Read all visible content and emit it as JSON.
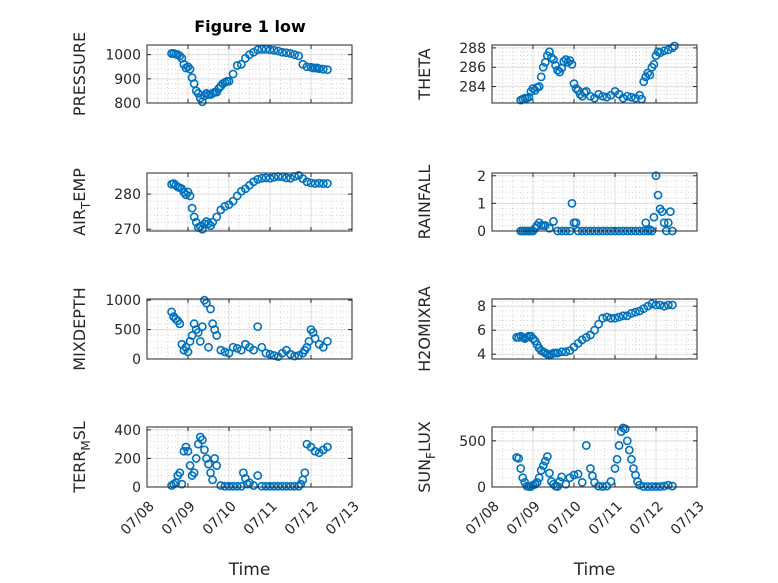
{
  "figure": {
    "title": "Figure 1 low",
    "marker_color": "#0072bd",
    "background": "#ffffff"
  },
  "chart_data": [
    {
      "type": "scatter",
      "title": "Figure 1 low",
      "xlabel": "",
      "ylabel": "PRESSURE",
      "xlim": [
        "07/08",
        "07/13"
      ],
      "ylim": [
        800,
        1040
      ],
      "yticks": [
        800,
        900,
        1000
      ],
      "xtick_labels": [],
      "grid": true,
      "x": [
        0.6,
        0.65,
        0.7,
        0.75,
        0.8,
        0.85,
        0.9,
        0.95,
        1.0,
        1.05,
        1.1,
        1.15,
        1.2,
        1.25,
        1.3,
        1.35,
        1.4,
        1.45,
        1.5,
        1.55,
        1.6,
        1.65,
        1.7,
        1.75,
        1.8,
        1.85,
        1.9,
        1.95,
        2.0,
        2.1,
        2.2,
        2.3,
        2.4,
        2.5,
        2.6,
        2.7,
        2.8,
        2.9,
        3.0,
        3.1,
        3.2,
        3.3,
        3.4,
        3.5,
        3.6,
        3.7,
        3.8,
        3.9,
        4.0,
        4.05,
        4.1,
        4.15,
        4.2,
        4.3,
        4.4
      ],
      "y": [
        1005,
        1005,
        1002,
        1000,
        995,
        985,
        960,
        945,
        950,
        940,
        905,
        880,
        850,
        840,
        820,
        805,
        830,
        840,
        835,
        835,
        840,
        845,
        845,
        860,
        870,
        880,
        885,
        890,
        890,
        920,
        955,
        960,
        985,
        1000,
        1010,
        1020,
        1022,
        1022,
        1020,
        1018,
        1015,
        1010,
        1008,
        1005,
        1000,
        995,
        960,
        950,
        948,
        945,
        945,
        945,
        942,
        940,
        938
      ]
    },
    {
      "type": "scatter",
      "xlabel": "",
      "ylabel": "THETA",
      "xlim": [
        "07/08",
        "07/13"
      ],
      "ylim": [
        282.3,
        288.3
      ],
      "yticks": [
        284,
        286,
        288
      ],
      "xtick_labels": [],
      "grid": true,
      "x": [
        0.7,
        0.75,
        0.8,
        0.85,
        0.9,
        0.95,
        1.0,
        1.05,
        1.1,
        1.15,
        1.2,
        1.25,
        1.3,
        1.35,
        1.4,
        1.45,
        1.5,
        1.55,
        1.6,
        1.65,
        1.7,
        1.75,
        1.8,
        1.85,
        1.9,
        1.95,
        2.0,
        2.05,
        2.1,
        2.15,
        2.2,
        2.25,
        2.3,
        2.4,
        2.5,
        2.6,
        2.7,
        2.8,
        2.9,
        3.0,
        3.1,
        3.2,
        3.3,
        3.4,
        3.5,
        3.6,
        3.65,
        3.7,
        3.75,
        3.8,
        3.85,
        3.9,
        3.95,
        4.0,
        4.05,
        4.1,
        4.2,
        4.3,
        4.4,
        4.45
      ],
      "y": [
        282.6,
        282.7,
        282.8,
        282.8,
        282.9,
        283.5,
        283.8,
        283.6,
        283.9,
        284.0,
        285.0,
        286.0,
        286.5,
        287.2,
        287.6,
        287.0,
        286.8,
        286.2,
        285.7,
        285.5,
        285.9,
        286.6,
        286.8,
        286.5,
        286.7,
        286.3,
        284.3,
        283.8,
        283.6,
        283.2,
        283.0,
        283.4,
        283.5,
        283.0,
        282.8,
        283.2,
        283.0,
        282.9,
        283.1,
        283.5,
        283.2,
        282.8,
        283.0,
        282.9,
        282.8,
        283.1,
        282.7,
        284.5,
        285.0,
        285.4,
        285.2,
        286.0,
        286.3,
        287.2,
        287.6,
        287.5,
        287.7,
        287.8,
        288.0,
        288.2
      ]
    },
    {
      "type": "scatter",
      "xlabel": "",
      "ylabel": "AIR_TEMP",
      "ylabel_sub": "T",
      "xlim": [
        "07/08",
        "07/13"
      ],
      "ylim": [
        269.5,
        286
      ],
      "yticks": [
        270,
        280
      ],
      "xtick_labels": [],
      "grid": true,
      "x": [
        0.6,
        0.65,
        0.7,
        0.75,
        0.8,
        0.85,
        0.9,
        0.95,
        1.0,
        1.05,
        1.1,
        1.15,
        1.2,
        1.25,
        1.3,
        1.35,
        1.4,
        1.45,
        1.5,
        1.55,
        1.6,
        1.7,
        1.8,
        1.9,
        2.0,
        2.1,
        2.2,
        2.3,
        2.4,
        2.5,
        2.6,
        2.7,
        2.8,
        2.9,
        3.0,
        3.1,
        3.2,
        3.3,
        3.4,
        3.5,
        3.6,
        3.7,
        3.8,
        3.9,
        4.0,
        4.1,
        4.2,
        4.3,
        4.4
      ],
      "y": [
        282.8,
        283.0,
        282.5,
        282.0,
        281.8,
        281.5,
        280.5,
        279.8,
        280.6,
        279.5,
        276.0,
        273.5,
        272.0,
        270.5,
        270.8,
        270.0,
        271.5,
        272.2,
        271.6,
        271.0,
        272.0,
        273.5,
        275.5,
        276.5,
        277.0,
        278.0,
        279.5,
        280.8,
        281.5,
        282.5,
        283.5,
        284.2,
        284.5,
        284.6,
        284.5,
        284.8,
        285.0,
        284.9,
        284.6,
        284.5,
        285.0,
        285.3,
        284.4,
        283.5,
        283.2,
        283.0,
        283.1,
        283.0,
        283.0
      ]
    },
    {
      "type": "scatter",
      "xlabel": "",
      "ylabel": "RAINFALL",
      "xlim": [
        "07/08",
        "07/13"
      ],
      "ylim": [
        0,
        2.1
      ],
      "yticks": [
        0,
        1,
        2
      ],
      "xtick_labels": [],
      "grid": true,
      "x": [
        0.7,
        0.75,
        0.8,
        0.85,
        0.9,
        0.95,
        1.0,
        1.05,
        1.1,
        1.15,
        1.2,
        1.25,
        1.3,
        1.4,
        1.5,
        1.6,
        1.7,
        1.8,
        1.9,
        1.95,
        2.0,
        2.05,
        2.1,
        2.2,
        2.3,
        2.4,
        2.5,
        2.6,
        2.7,
        2.8,
        2.9,
        3.0,
        3.1,
        3.2,
        3.3,
        3.4,
        3.5,
        3.6,
        3.7,
        3.75,
        3.8,
        3.85,
        3.9,
        3.95,
        4.0,
        4.05,
        4.1,
        4.15,
        4.2,
        4.25,
        4.3,
        4.35,
        4.4
      ],
      "y": [
        0,
        0,
        0,
        0,
        0,
        0,
        0,
        0.1,
        0.2,
        0.3,
        0.2,
        0.2,
        0.2,
        0.1,
        0.35,
        0,
        0,
        0,
        0,
        1.0,
        0.3,
        0.3,
        0,
        0,
        0,
        0,
        0,
        0,
        0,
        0,
        0,
        0,
        0,
        0,
        0,
        0,
        0,
        0,
        0,
        0.3,
        0,
        0.05,
        0,
        0.5,
        2.0,
        1.3,
        0.8,
        0.7,
        0.3,
        0,
        0.3,
        0.7,
        0
      ]
    },
    {
      "type": "scatter",
      "xlabel": "",
      "ylabel": "MIXDEPTH",
      "xlim": [
        "07/08",
        "07/13"
      ],
      "ylim": [
        0,
        1020
      ],
      "yticks": [
        0,
        500,
        1000
      ],
      "xtick_labels": [],
      "grid": true,
      "x": [
        0.6,
        0.65,
        0.7,
        0.75,
        0.8,
        0.85,
        0.9,
        0.95,
        1.0,
        1.05,
        1.1,
        1.15,
        1.2,
        1.25,
        1.3,
        1.35,
        1.4,
        1.45,
        1.5,
        1.55,
        1.6,
        1.65,
        1.7,
        1.8,
        1.9,
        2.0,
        2.1,
        2.2,
        2.3,
        2.4,
        2.5,
        2.6,
        2.7,
        2.8,
        2.9,
        3.0,
        3.1,
        3.2,
        3.3,
        3.4,
        3.5,
        3.6,
        3.7,
        3.8,
        3.85,
        3.9,
        3.95,
        4.0,
        4.05,
        4.1,
        4.2,
        4.3,
        4.4
      ],
      "y": [
        800,
        720,
        680,
        650,
        600,
        250,
        150,
        200,
        120,
        300,
        400,
        600,
        500,
        450,
        300,
        550,
        1000,
        950,
        200,
        850,
        600,
        500,
        400,
        150,
        120,
        100,
        200,
        180,
        150,
        250,
        200,
        150,
        550,
        200,
        100,
        80,
        60,
        40,
        100,
        150,
        80,
        50,
        60,
        100,
        150,
        200,
        300,
        500,
        450,
        350,
        250,
        200,
        300
      ]
    },
    {
      "type": "scatter",
      "xlabel": "",
      "ylabel": "H2OMIXRA",
      "xlim": [
        "07/08",
        "07/13"
      ],
      "ylim": [
        3.6,
        8.6
      ],
      "yticks": [
        4,
        6,
        8
      ],
      "xtick_labels": [],
      "grid": true,
      "x": [
        0.6,
        0.65,
        0.7,
        0.75,
        0.8,
        0.85,
        0.9,
        0.95,
        1.0,
        1.05,
        1.1,
        1.15,
        1.2,
        1.25,
        1.3,
        1.35,
        1.4,
        1.45,
        1.5,
        1.55,
        1.6,
        1.7,
        1.8,
        1.9,
        2.0,
        2.1,
        2.2,
        2.3,
        2.4,
        2.5,
        2.6,
        2.7,
        2.8,
        2.9,
        3.0,
        3.1,
        3.2,
        3.3,
        3.4,
        3.5,
        3.6,
        3.7,
        3.8,
        3.9,
        4.0,
        4.1,
        4.2,
        4.3,
        4.4
      ],
      "y": [
        5.4,
        5.4,
        5.5,
        5.4,
        5.3,
        5.4,
        5.5,
        5.5,
        5.3,
        5.1,
        4.8,
        4.5,
        4.3,
        4.2,
        4.1,
        4.0,
        3.9,
        4.0,
        4.1,
        4.1,
        4.1,
        4.2,
        4.2,
        4.3,
        4.6,
        4.9,
        5.2,
        5.4,
        5.6,
        6.0,
        6.5,
        7.0,
        7.1,
        7.0,
        7.0,
        7.1,
        7.2,
        7.2,
        7.4,
        7.5,
        7.6,
        7.8,
        8.0,
        8.2,
        8.1,
        8.1,
        8.0,
        8.1,
        8.1
      ]
    },
    {
      "type": "scatter",
      "xlabel": "Time",
      "ylabel": "TERR_MSL",
      "ylabel_sub": "M",
      "xlim": [
        "07/08",
        "07/13"
      ],
      "ylim": [
        0,
        420
      ],
      "yticks": [
        0,
        200,
        400
      ],
      "xtick_labels": [
        "07/08",
        "07/09",
        "07/10",
        "07/11",
        "07/12",
        "07/13"
      ],
      "grid": true,
      "x": [
        0.6,
        0.65,
        0.7,
        0.75,
        0.8,
        0.85,
        0.9,
        0.95,
        1.0,
        1.05,
        1.1,
        1.15,
        1.2,
        1.25,
        1.3,
        1.35,
        1.4,
        1.45,
        1.5,
        1.55,
        1.6,
        1.65,
        1.7,
        1.8,
        1.9,
        2.0,
        2.1,
        2.2,
        2.3,
        2.35,
        2.4,
        2.45,
        2.5,
        2.6,
        2.7,
        2.8,
        2.9,
        3.0,
        3.1,
        3.2,
        3.3,
        3.4,
        3.5,
        3.6,
        3.7,
        3.75,
        3.8,
        3.85,
        3.9,
        4.0,
        4.1,
        4.2,
        4.3,
        4.4
      ],
      "y": [
        10,
        20,
        30,
        80,
        100,
        20,
        250,
        280,
        250,
        150,
        80,
        100,
        200,
        300,
        350,
        330,
        260,
        200,
        160,
        100,
        50,
        200,
        150,
        10,
        5,
        5,
        5,
        5,
        5,
        100,
        60,
        20,
        30,
        10,
        80,
        5,
        5,
        5,
        5,
        5,
        5,
        5,
        5,
        5,
        5,
        20,
        50,
        100,
        300,
        280,
        250,
        240,
        260,
        280
      ]
    },
    {
      "type": "scatter",
      "xlabel": "Time",
      "ylabel": "SUN_FLUX",
      "ylabel_sub": "F",
      "xlim": [
        "07/08",
        "07/13"
      ],
      "ylim": [
        0,
        650
      ],
      "yticks": [
        0,
        500
      ],
      "xtick_labels": [
        "07/08",
        "07/09",
        "07/10",
        "07/11",
        "07/12",
        "07/13"
      ],
      "grid": true,
      "x": [
        0.6,
        0.65,
        0.7,
        0.75,
        0.8,
        0.85,
        0.9,
        0.95,
        1.0,
        1.05,
        1.1,
        1.15,
        1.2,
        1.25,
        1.3,
        1.35,
        1.4,
        1.45,
        1.5,
        1.55,
        1.6,
        1.65,
        1.7,
        1.8,
        1.9,
        2.0,
        2.1,
        2.2,
        2.3,
        2.4,
        2.45,
        2.5,
        2.6,
        2.7,
        2.8,
        2.9,
        3.0,
        3.05,
        3.1,
        3.15,
        3.2,
        3.25,
        3.3,
        3.35,
        3.4,
        3.45,
        3.5,
        3.55,
        3.6,
        3.7,
        3.8,
        3.9,
        4.0,
        4.1,
        4.2,
        4.3,
        4.4
      ],
      "y": [
        320,
        310,
        200,
        100,
        50,
        10,
        5,
        5,
        20,
        30,
        50,
        100,
        180,
        230,
        280,
        330,
        150,
        60,
        30,
        10,
        5,
        60,
        110,
        30,
        100,
        130,
        140,
        50,
        450,
        200,
        120,
        50,
        10,
        5,
        10,
        60,
        200,
        300,
        450,
        600,
        640,
        630,
        500,
        400,
        300,
        200,
        130,
        60,
        20,
        5,
        5,
        5,
        5,
        5,
        10,
        20,
        10
      ]
    }
  ]
}
